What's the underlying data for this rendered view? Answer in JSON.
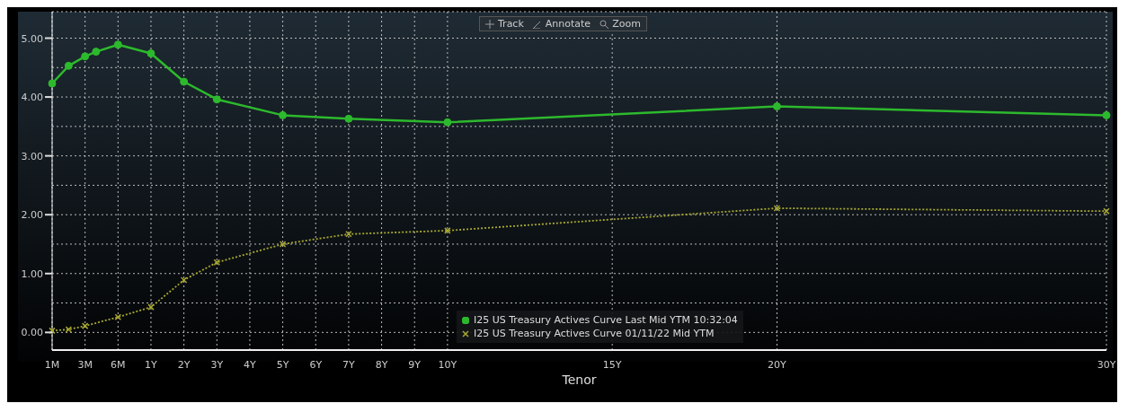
{
  "chart_data": {
    "type": "line",
    "xlabel": "Tenor",
    "categories": [
      "1M",
      null,
      null,
      null,
      null,
      null,
      "3M",
      null,
      null,
      null,
      null,
      null,
      "6M",
      null,
      null,
      null,
      null,
      null,
      "1Y",
      null,
      null,
      null,
      null,
      null,
      "2Y",
      null,
      null,
      null,
      null,
      null,
      "3Y",
      null,
      null,
      null,
      null,
      null,
      "4Y",
      null,
      null,
      null,
      null,
      null,
      "5Y",
      null,
      null,
      null,
      null,
      null,
      "6Y",
      null,
      null,
      null,
      null,
      null,
      "7Y",
      null,
      null,
      null,
      null,
      null,
      "8Y",
      null,
      null,
      null,
      null,
      null,
      "9Y",
      null,
      null,
      null,
      null,
      null,
      "10Y",
      null,
      null,
      null,
      null,
      null,
      null,
      null,
      null,
      null,
      null,
      null,
      null,
      null,
      null,
      null,
      null,
      null,
      null,
      null,
      null,
      null,
      null,
      null,
      null,
      null,
      null,
      null,
      null,
      null,
      "15Y",
      null,
      null,
      null,
      null,
      null,
      null,
      null,
      null,
      null,
      null,
      null,
      null,
      null,
      null,
      null,
      null,
      null,
      null,
      null,
      null,
      null,
      null,
      null,
      null,
      null,
      null,
      null,
      null,
      null,
      "20Y",
      null,
      null,
      null,
      null,
      null,
      null,
      null,
      null,
      null,
      null,
      null,
      null,
      null,
      null,
      null,
      null,
      null,
      null,
      null,
      null,
      null,
      null,
      null,
      null,
      null,
      null,
      null,
      null,
      null,
      null,
      null,
      null,
      null,
      null,
      null,
      null,
      null,
      null,
      null,
      null,
      null,
      null,
      null,
      null,
      null,
      null,
      null,
      null,
      null,
      null,
      null,
      null,
      null,
      null,
      null,
      null,
      null,
      null,
      null,
      "30Y"
    ],
    "ylim": [
      -0.3,
      5.45
    ],
    "yticks": [
      {
        "value": 0,
        "label": "0.00"
      },
      {
        "value": 0.5,
        "label": null
      },
      {
        "value": 1,
        "label": "1.00"
      },
      {
        "value": 1.5,
        "label": null
      },
      {
        "value": 2,
        "label": "2.00"
      },
      {
        "value": 2.5,
        "label": null
      },
      {
        "value": 3,
        "label": "3.00"
      },
      {
        "value": 3.5,
        "label": null
      },
      {
        "value": 4,
        "label": "4.00"
      },
      {
        "value": 4.5,
        "label": null
      },
      {
        "value": 5,
        "label": "5.00"
      }
    ],
    "grid": true,
    "legend": "bottom",
    "annotations": [
      "Track",
      "Annotate",
      "Zoom"
    ],
    "series": [
      {
        "name": "I25 US Treasury Actives Curve Last Mid YTM 10:32:04",
        "color": "#2db92d",
        "marker": "circle",
        "line_style": "solid",
        "values": [
          4.23,
          null,
          null,
          4.53,
          null,
          null,
          4.69,
          null,
          4.77,
          null,
          null,
          null,
          4.89,
          null,
          null,
          null,
          null,
          null,
          4.74,
          null,
          null,
          null,
          null,
          null,
          4.26,
          null,
          null,
          null,
          null,
          null,
          3.96,
          null,
          null,
          null,
          null,
          null,
          null,
          null,
          null,
          null,
          null,
          null,
          3.69,
          null,
          null,
          null,
          null,
          null,
          null,
          null,
          null,
          null,
          null,
          null,
          3.63,
          null,
          null,
          null,
          null,
          null,
          null,
          null,
          null,
          null,
          null,
          null,
          null,
          null,
          null,
          null,
          null,
          null,
          3.57,
          null,
          null,
          null,
          null,
          null,
          null,
          null,
          null,
          null,
          null,
          null,
          null,
          null,
          null,
          null,
          null,
          null,
          null,
          null,
          null,
          null,
          null,
          null,
          null,
          null,
          null,
          null,
          null,
          null,
          null,
          null,
          null,
          null,
          null,
          null,
          null,
          null,
          null,
          null,
          null,
          null,
          null,
          null,
          null,
          null,
          null,
          null,
          null,
          null,
          null,
          null,
          null,
          null,
          null,
          null,
          null,
          null,
          null,
          null,
          3.84,
          null,
          null,
          null,
          null,
          null,
          null,
          null,
          null,
          null,
          null,
          null,
          null,
          null,
          null,
          null,
          null,
          null,
          null,
          null,
          null,
          null,
          null,
          null,
          null,
          null,
          null,
          null,
          null,
          null,
          null,
          null,
          null,
          null,
          null,
          null,
          null,
          null,
          null,
          null,
          null,
          null,
          null,
          null,
          null,
          null,
          null,
          null,
          null,
          null,
          null,
          null,
          null,
          null,
          null,
          null,
          null,
          null,
          null,
          null,
          3.69
        ]
      },
      {
        "name": "I25 US Treasury Actives Curve 01/11/22 Mid YTM",
        "color": "#a8a830",
        "marker": "cross",
        "line_style": "dotted",
        "values": [
          0.03,
          null,
          null,
          0.05,
          null,
          null,
          0.11,
          null,
          null,
          null,
          null,
          null,
          0.26,
          null,
          null,
          null,
          null,
          null,
          0.43,
          null,
          null,
          null,
          null,
          null,
          0.89,
          null,
          null,
          null,
          null,
          null,
          1.19,
          null,
          null,
          null,
          null,
          null,
          null,
          null,
          null,
          null,
          null,
          null,
          1.5,
          null,
          null,
          null,
          null,
          null,
          null,
          null,
          null,
          null,
          null,
          null,
          1.67,
          null,
          null,
          null,
          null,
          null,
          null,
          null,
          null,
          null,
          null,
          null,
          null,
          null,
          null,
          null,
          null,
          null,
          1.73,
          null,
          null,
          null,
          null,
          null,
          null,
          null,
          null,
          null,
          null,
          null,
          null,
          null,
          null,
          null,
          null,
          null,
          null,
          null,
          null,
          null,
          null,
          null,
          null,
          null,
          null,
          null,
          null,
          null,
          null,
          null,
          null,
          null,
          null,
          null,
          null,
          null,
          null,
          null,
          null,
          null,
          null,
          null,
          null,
          null,
          null,
          null,
          null,
          null,
          null,
          null,
          null,
          null,
          null,
          null,
          null,
          null,
          null,
          null,
          2.11,
          null,
          null,
          null,
          null,
          null,
          null,
          null,
          null,
          null,
          null,
          null,
          null,
          null,
          null,
          null,
          null,
          null,
          null,
          null,
          null,
          null,
          null,
          null,
          null,
          null,
          null,
          null,
          null,
          null,
          null,
          null,
          null,
          null,
          null,
          null,
          null,
          null,
          null,
          null,
          null,
          null,
          null,
          null,
          null,
          null,
          null,
          null,
          null,
          null,
          null,
          null,
          null,
          null,
          null,
          null,
          null,
          null,
          null,
          null,
          2.06
        ]
      }
    ]
  }
}
